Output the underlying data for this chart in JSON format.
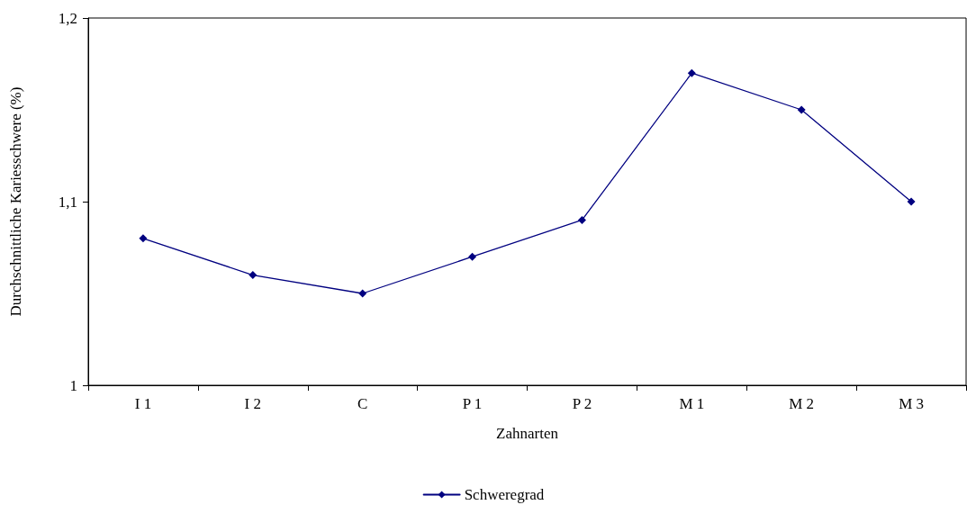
{
  "chart_data": {
    "type": "line",
    "xlabel": "Zahnarten",
    "ylabel": "Durchschnittliche Kariesschwere (%)",
    "categories": [
      "I 1",
      "I 2",
      "C",
      "P 1",
      "P 2",
      "M 1",
      "M 2",
      "M 3"
    ],
    "series": [
      {
        "name": "Schweregrad",
        "color": "#000080",
        "values": [
          1.08,
          1.06,
          1.05,
          1.07,
          1.09,
          1.17,
          1.15,
          1.1
        ]
      }
    ],
    "ylim": [
      1,
      1.2
    ],
    "yticks": [
      1,
      {
        "value": 1.1,
        "label": "1,1"
      },
      {
        "value": 1.2,
        "label": "1,2"
      }
    ],
    "grid": false,
    "legend": "bottom",
    "marker": "diamond",
    "line_style": "solid"
  }
}
